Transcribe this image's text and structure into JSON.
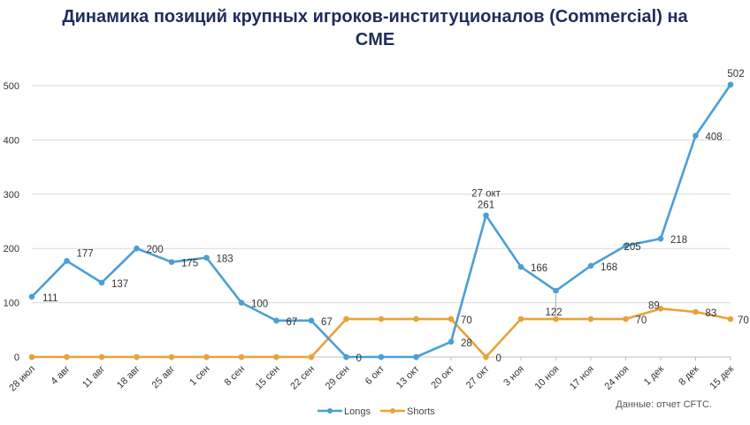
{
  "chart_data": {
    "type": "line",
    "title_line1": "Динамика позиций крупных игроков-институционалов (Commercial) на",
    "title_line2": "CME",
    "categories": [
      "28 июл",
      "4 авг",
      "11 авг",
      "18 авг",
      "25 авг",
      "1 сен",
      "8 сен",
      "15 сен",
      "22 сен",
      "29 сен",
      "6 окт",
      "13 окт",
      "20 окт",
      "27 окт",
      "3 ноя",
      "10 ноя",
      "17 ноя",
      "24 ноя",
      "1 дек",
      "8 дек",
      "15 дек"
    ],
    "ylim": [
      0,
      500
    ],
    "yticks": [
      0,
      100,
      200,
      300,
      400,
      500
    ],
    "grid": true,
    "legend_position": "bottom",
    "series": [
      {
        "name": "Longs",
        "color": "#4a9fd4",
        "values": [
          111,
          177,
          137,
          200,
          175,
          183,
          100,
          67,
          67,
          0,
          0,
          0,
          28,
          261,
          166,
          122,
          168,
          205,
          218,
          408,
          502
        ],
        "labels": [
          "111",
          "177",
          "137",
          "200",
          "175",
          "183",
          "100",
          "67",
          "67",
          "0",
          "",
          "",
          "28",
          "261",
          "166",
          "122",
          "168",
          "205",
          "218",
          "408",
          "502"
        ]
      },
      {
        "name": "Shorts",
        "color": "#e8a23a",
        "values": [
          0,
          0,
          0,
          0,
          0,
          0,
          0,
          0,
          0,
          70,
          70,
          70,
          70,
          0,
          70,
          70,
          70,
          70,
          89,
          83,
          70
        ],
        "labels": [
          "",
          "",
          "",
          "",
          "",
          "",
          "",
          "",
          "",
          "",
          "",
          "",
          "70",
          "0",
          "",
          "",
          "",
          "70",
          "89",
          "83",
          "70"
        ]
      }
    ],
    "annotations": [
      {
        "text": "27 окт",
        "category": "27 окт"
      }
    ],
    "source_note": "Данные: отчет CFTC."
  }
}
